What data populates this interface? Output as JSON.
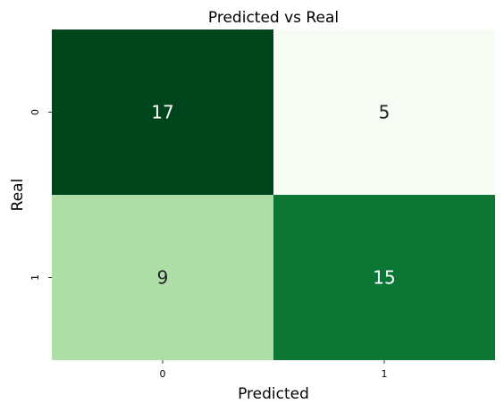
{
  "chart_data": {
    "type": "heatmap",
    "title": "Predicted vs Real",
    "xlabel": "Predicted",
    "ylabel": "Real",
    "x_categories": [
      "0",
      "1"
    ],
    "y_categories": [
      "0",
      "1"
    ],
    "values": [
      [
        17,
        5
      ],
      [
        9,
        15
      ]
    ],
    "colormap": "Greens",
    "colorbar": false,
    "annotate": true
  }
}
